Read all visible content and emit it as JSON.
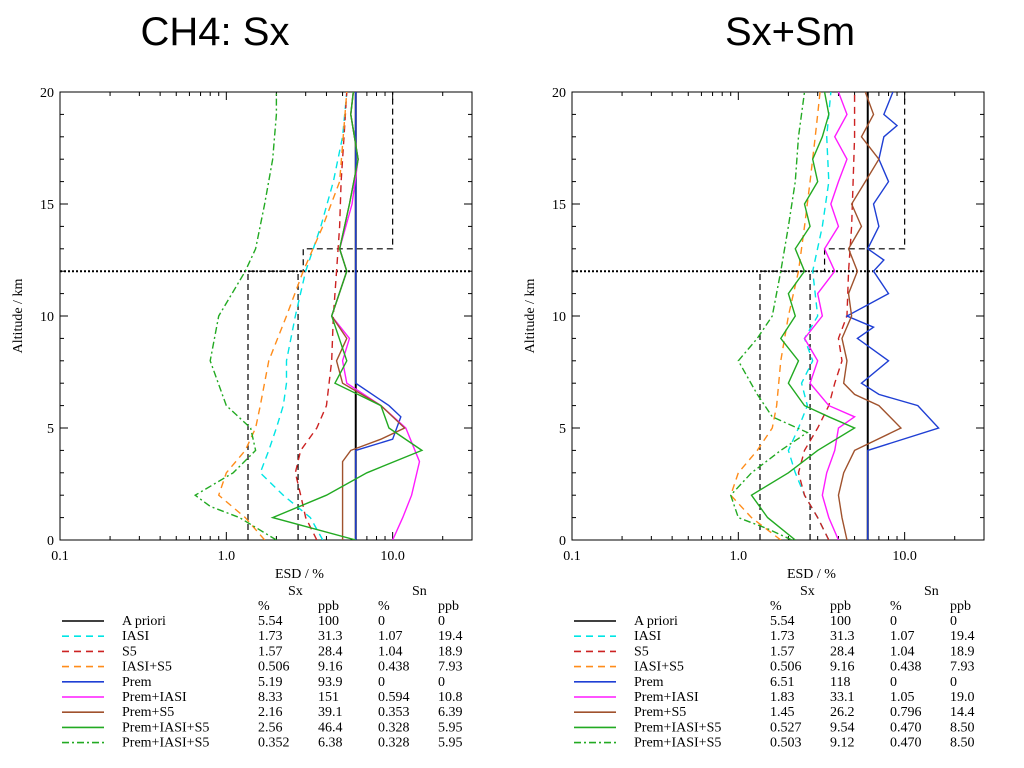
{
  "slide": {
    "title_left": "CH4: Sx",
    "title_right": "Sx+Sm"
  },
  "chart_data": [
    {
      "type": "line",
      "title": "CH4: Sx",
      "xlabel": "ESD / %",
      "ylabel": "Altitude / km",
      "x_scale": "log",
      "xlim": [
        0.1,
        30
      ],
      "ylim": [
        0,
        20
      ],
      "x_ticks": [
        "0.1",
        "1.0",
        "10.0"
      ],
      "y_ticks": [
        "0",
        "5",
        "10",
        "15",
        "20"
      ],
      "reference_line_altitude_km": 12,
      "series": [
        {
          "name": "A priori",
          "color": "#000000",
          "dash": "solid",
          "x": [
            6,
            6,
            6,
            6,
            6,
            6
          ],
          "y": [
            0,
            4,
            8,
            12,
            16,
            20
          ]
        },
        {
          "name": "IASI",
          "color": "#00e5e5",
          "dash": "dash",
          "x": [
            3.8,
            3.2,
            2.2,
            1.6,
            1.8,
            2.0,
            2.2,
            2.3,
            2.3,
            2.6,
            3.0,
            3.7,
            4.4,
            5.0,
            5.3
          ],
          "y": [
            0,
            1,
            2,
            3,
            4,
            5,
            6,
            7,
            8,
            10,
            12,
            14,
            16,
            18,
            20
          ]
        },
        {
          "name": "S5",
          "color": "#cc2222",
          "dash": "dash",
          "x": [
            3.5,
            3.0,
            2.8,
            2.6,
            2.8,
            3.5,
            4.0,
            4.3,
            4.4,
            4.6,
            4.8,
            4.9,
            5.1,
            5.3
          ],
          "y": [
            0,
            1,
            2,
            3,
            4,
            5,
            6,
            8,
            10,
            12,
            14,
            16,
            18,
            20
          ]
        },
        {
          "name": "IASI+S5",
          "color": "#ff8c1a",
          "dash": "dash",
          "x": [
            1.7,
            1.3,
            0.9,
            1.0,
            1.3,
            1.5,
            1.6,
            1.8,
            2.3,
            2.9,
            3.8,
            4.8,
            5.3
          ],
          "y": [
            0,
            1,
            2,
            3,
            4,
            5,
            6,
            8,
            10,
            12,
            14,
            16,
            20
          ]
        },
        {
          "name": "Prem",
          "color": "#1f3fd4",
          "dash": "solid",
          "x": [
            6,
            6,
            6,
            6,
            10,
            11.2,
            9.5,
            6,
            6,
            6,
            6,
            6,
            6
          ],
          "y": [
            0,
            1,
            2,
            4,
            4.5,
            5.5,
            6,
            7,
            10,
            12,
            15,
            18,
            20
          ]
        },
        {
          "name": "Prem+IASI",
          "color": "#ff1aff",
          "dash": "solid",
          "x": [
            10,
            11.5,
            13,
            14.5,
            12,
            8.5,
            5.3,
            5.0,
            5.5,
            4.3,
            5.3,
            4.8,
            5.7,
            6.2,
            5.6,
            5.8
          ],
          "y": [
            0,
            1,
            2,
            3.5,
            5,
            6,
            7,
            8,
            9,
            10,
            12,
            13,
            15,
            17,
            19,
            20
          ]
        },
        {
          "name": "Prem+S5",
          "color": "#a0522d",
          "dash": "solid",
          "x": [
            5.0,
            5.0,
            5.0,
            5.6,
            8.5,
            11.8,
            8.5,
            5.0,
            4.6,
            5.3,
            4.3,
            5.3,
            4.8,
            5.5,
            6.2,
            5.6,
            5.8
          ],
          "y": [
            0,
            2,
            3.5,
            4,
            4.5,
            5,
            6,
            7,
            8,
            9,
            10,
            12,
            13,
            15,
            17,
            19,
            20
          ]
        },
        {
          "name": "Prem+IASI+S5",
          "color": "#22aa22",
          "dash": "solid",
          "x": [
            6,
            1.9,
            4,
            7,
            15,
            9.5,
            8.5,
            4.5,
            5.3,
            4.3,
            5.3,
            4.8,
            5.5,
            6.2,
            5.6,
            5.8
          ],
          "y": [
            0,
            1,
            2,
            3,
            4,
            5,
            6,
            7,
            8,
            10,
            12,
            13,
            15,
            17,
            19,
            20
          ]
        },
        {
          "name": "Prem+IASI+S5",
          "color": "#22aa22",
          "dash": "dashdot",
          "x": [
            2.0,
            1.2,
            0.8,
            0.65,
            1.1,
            1.5,
            1.4,
            1.0,
            0.8,
            0.9,
            1.3,
            1.5,
            1.7,
            1.9,
            2.0,
            2.0
          ],
          "y": [
            0,
            1,
            1.5,
            2,
            3,
            4,
            5,
            6,
            8,
            10,
            12,
            13,
            15,
            17,
            19,
            20
          ]
        }
      ],
      "uncertainty_boxes": [
        {
          "color": "#000000",
          "x": [
            1.35,
            1.35,
            2.9,
            2.9,
            10,
            10
          ],
          "y": [
            0,
            12,
            12,
            13,
            13,
            20
          ]
        },
        {
          "color": "#000000",
          "x": [
            2.7,
            2.7
          ],
          "y": [
            0,
            12
          ]
        }
      ],
      "table": {
        "group1": "Sx",
        "group2": "Sn",
        "units": [
          "%",
          "ppb",
          "%",
          "ppb"
        ],
        "rows": [
          {
            "name": "A priori",
            "values": [
              "5.54",
              "100",
              "0",
              "0"
            ]
          },
          {
            "name": "IASI",
            "values": [
              "1.73",
              "31.3",
              "1.07",
              "19.4"
            ]
          },
          {
            "name": "S5",
            "values": [
              "1.57",
              "28.4",
              "1.04",
              "18.9"
            ]
          },
          {
            "name": "IASI+S5",
            "values": [
              "0.506",
              "9.16",
              "0.438",
              "7.93"
            ]
          },
          {
            "name": "Prem",
            "values": [
              "5.19",
              "93.9",
              "0",
              "0"
            ]
          },
          {
            "name": "Prem+IASI",
            "values": [
              "8.33",
              "151",
              "0.594",
              "10.8"
            ]
          },
          {
            "name": "Prem+S5",
            "values": [
              "2.16",
              "39.1",
              "0.353",
              "6.39"
            ]
          },
          {
            "name": "Prem+IASI+S5",
            "values": [
              "2.56",
              "46.4",
              "0.328",
              "5.95"
            ]
          },
          {
            "name": "Prem+IASI+S5",
            "values": [
              "0.352",
              "6.38",
              "0.328",
              "5.95"
            ]
          }
        ]
      }
    },
    {
      "type": "line",
      "title": "Sx+Sm",
      "xlabel": "ESD / %",
      "ylabel": "Altitude / km",
      "x_scale": "log",
      "xlim": [
        0.1,
        30
      ],
      "ylim": [
        0,
        20
      ],
      "x_ticks": [
        "0.1",
        "1.0",
        "10.0"
      ],
      "y_ticks": [
        "0",
        "5",
        "10",
        "15",
        "20"
      ],
      "reference_line_altitude_km": 12,
      "series": [
        {
          "name": "A priori",
          "color": "#000000",
          "dash": "solid",
          "x": [
            6,
            6,
            6,
            6,
            6,
            6
          ],
          "y": [
            0,
            4,
            8,
            12,
            16,
            20
          ]
        },
        {
          "name": "IASI",
          "color": "#00e5e5",
          "dash": "dash",
          "x": [
            3.5,
            3.0,
            2.5,
            2.2,
            2.0,
            2.3,
            2.6,
            2.4,
            2.8,
            2.5,
            3.0,
            2.8,
            3.2,
            3.5,
            3.4,
            3.6
          ],
          "y": [
            0,
            1,
            2,
            3,
            4,
            5,
            6,
            7,
            8,
            9,
            10,
            12,
            14,
            16,
            18,
            20
          ]
        },
        {
          "name": "S5",
          "color": "#cc2222",
          "dash": "dash",
          "x": [
            3.5,
            3.0,
            2.5,
            2.3,
            2.5,
            3.0,
            3.5,
            3.8,
            4.2,
            4.0,
            4.5,
            4.6,
            4.8,
            4.9,
            5.0,
            5.0
          ],
          "y": [
            0,
            1,
            2,
            3,
            4,
            5,
            6,
            7,
            8,
            9,
            10,
            12,
            14,
            16,
            18,
            20
          ]
        },
        {
          "name": "IASI+S5",
          "color": "#ff8c1a",
          "dash": "dash",
          "x": [
            1.8,
            1.2,
            0.9,
            1.0,
            1.3,
            1.6,
            1.7,
            1.8,
            2.0,
            2.3,
            2.5,
            2.7,
            2.9,
            3.0,
            3.1
          ],
          "y": [
            0,
            1,
            2,
            3,
            4,
            5,
            6,
            8,
            10,
            12,
            14,
            16,
            18,
            19,
            20
          ]
        },
        {
          "name": "Prem",
          "color": "#1f3fd4",
          "dash": "solid",
          "x": [
            6,
            6,
            6,
            6,
            16,
            12,
            7,
            5.5,
            8,
            5.2,
            6.5,
            4.5,
            8,
            6.5,
            7.5,
            6,
            7,
            6.5,
            8,
            7,
            7.5,
            9,
            7.5,
            8.5
          ],
          "y": [
            0,
            2,
            3,
            4,
            5,
            6,
            6.5,
            7,
            8,
            9,
            9.5,
            10,
            11,
            12,
            12.5,
            13,
            14,
            15,
            16,
            17,
            18,
            18.5,
            19,
            20
          ]
        },
        {
          "name": "Prem+IASI",
          "color": "#ff1aff",
          "dash": "solid",
          "x": [
            4.0,
            3.5,
            3.2,
            3.4,
            3.8,
            4.0,
            5.0,
            3.5,
            2.7,
            3.0,
            2.5,
            3.2,
            3.0,
            3.8,
            3.3,
            4.0,
            3.6,
            4.0,
            4.5,
            3.8,
            4.5,
            4.0
          ],
          "y": [
            0,
            1,
            2,
            3,
            4,
            5,
            5.5,
            6,
            7,
            8,
            9,
            10,
            11,
            12,
            13,
            14,
            15,
            16,
            17,
            18,
            19,
            20
          ]
        },
        {
          "name": "Prem+S5",
          "color": "#a0522d",
          "dash": "solid",
          "x": [
            4.5,
            4.2,
            4.0,
            4.3,
            5.0,
            9.5,
            7.0,
            5.0,
            4.3,
            4.5,
            4.2,
            4.8,
            4.6,
            5.2,
            4.6,
            5.5,
            4.8,
            5.8,
            7.0,
            5.5,
            6.5,
            5.8
          ],
          "y": [
            0,
            1,
            2,
            3,
            4,
            5,
            6,
            6.5,
            7,
            8,
            9,
            10,
            11,
            12,
            13,
            14,
            15,
            16,
            17,
            18,
            19,
            20
          ]
        },
        {
          "name": "Prem+IASI+S5",
          "color": "#22aa22",
          "dash": "solid",
          "x": [
            2.2,
            1.5,
            1.2,
            2.0,
            3.0,
            5.0,
            3.5,
            2.5,
            2.0,
            2.3,
            1.8,
            2.2,
            2.0,
            2.5,
            2.2,
            2.7,
            2.5,
            3.0,
            2.8,
            3.2,
            3.5,
            3.3
          ],
          "y": [
            0,
            1,
            2,
            3,
            4,
            5,
            5.5,
            6,
            7,
            8,
            9,
            10,
            11,
            12,
            13,
            14,
            15,
            16,
            17,
            18,
            19,
            20
          ]
        },
        {
          "name": "Prem+IASI+S5",
          "color": "#22aa22",
          "dash": "dashdot",
          "x": [
            2.1,
            1.5,
            1.0,
            0.9,
            1.2,
            1.8,
            2.6,
            1.6,
            1.3,
            1.0,
            1.3,
            1.6,
            1.8,
            2.0,
            2.2,
            2.3,
            2.5
          ],
          "y": [
            0,
            0.5,
            1,
            2,
            3,
            4,
            4.8,
            5.5,
            6.5,
            8,
            9,
            10,
            12,
            14,
            16,
            18,
            20
          ]
        }
      ],
      "uncertainty_boxes": [
        {
          "color": "#000000",
          "x": [
            1.35,
            1.35,
            3.3,
            3.3,
            10,
            10
          ],
          "y": [
            0,
            12,
            12,
            13,
            13,
            20
          ]
        },
        {
          "color": "#000000",
          "x": [
            2.7,
            2.7
          ],
          "y": [
            0,
            12
          ]
        }
      ],
      "table": {
        "group1": "Sx",
        "group2": "Sn",
        "units": [
          "%",
          "ppb",
          "%",
          "ppb"
        ],
        "rows": [
          {
            "name": "A priori",
            "values": [
              "5.54",
              "100",
              "0",
              "0"
            ]
          },
          {
            "name": "IASI",
            "values": [
              "1.73",
              "31.3",
              "1.07",
              "19.4"
            ]
          },
          {
            "name": "S5",
            "values": [
              "1.57",
              "28.4",
              "1.04",
              "18.9"
            ]
          },
          {
            "name": "IASI+S5",
            "values": [
              "0.506",
              "9.16",
              "0.438",
              "7.93"
            ]
          },
          {
            "name": "Prem",
            "values": [
              "6.51",
              "118",
              "0",
              "0"
            ]
          },
          {
            "name": "Prem+IASI",
            "values": [
              "1.83",
              "33.1",
              "1.05",
              "19.0"
            ]
          },
          {
            "name": "Prem+S5",
            "values": [
              "1.45",
              "26.2",
              "0.796",
              "14.4"
            ]
          },
          {
            "name": "Prem+IASI+S5",
            "values": [
              "0.527",
              "9.54",
              "0.470",
              "8.50"
            ]
          },
          {
            "name": "Prem+IASI+S5",
            "values": [
              "0.503",
              "9.12",
              "0.470",
              "8.50"
            ]
          }
        ]
      }
    }
  ]
}
